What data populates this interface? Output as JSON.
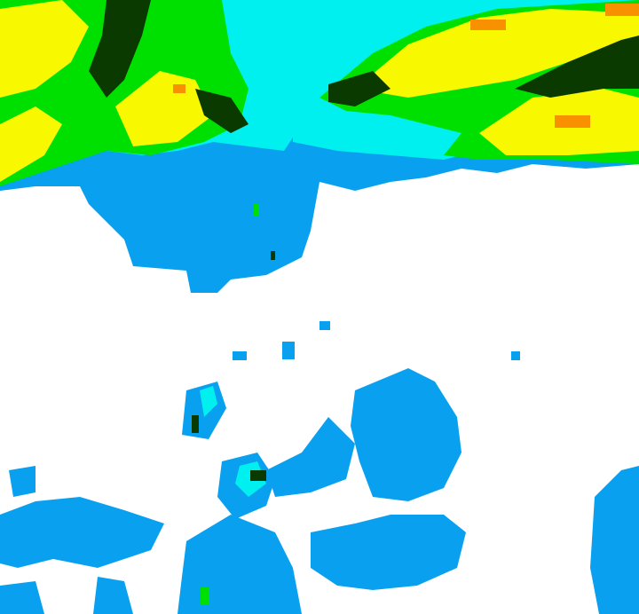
{
  "map": {
    "type": "weather-radar-reflectivity",
    "colors": {
      "background": "#ffffff",
      "light_precip": "#0aa0f0",
      "moderate_precip": "#00f0f0",
      "green": "#00e000",
      "dark_green": "#0a3a00",
      "yellow": "#f8f800",
      "orange": "#f89000"
    }
  }
}
